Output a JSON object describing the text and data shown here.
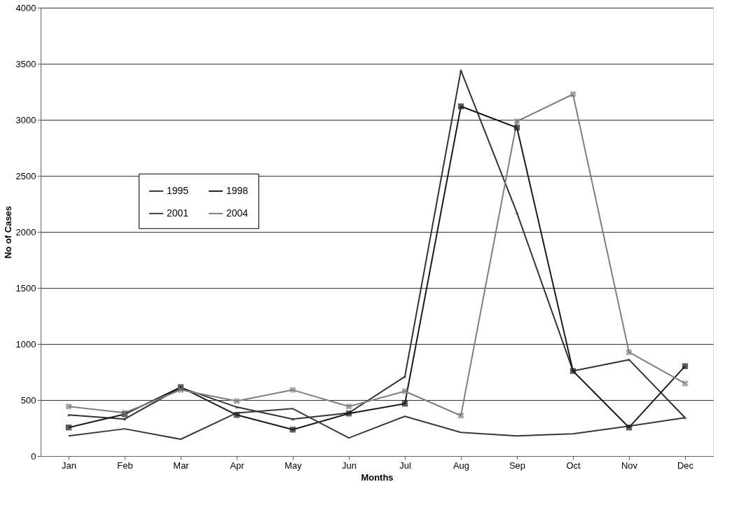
{
  "chart_data": {
    "type": "line",
    "xlabel": "Months",
    "ylabel": "No of Cases",
    "categories": [
      "Jan",
      "Feb",
      "Mar",
      "Apr",
      "May",
      "Jun",
      "Jul",
      "Aug",
      "Sep",
      "Oct",
      "Nov",
      "Dec"
    ],
    "series": [
      {
        "name": "1995",
        "color": "#333333",
        "marker": "triangle",
        "values": [
          367,
          330,
          610,
          437,
          330,
          385,
          709,
          3440,
          2170,
          760,
          860,
          342
        ]
      },
      {
        "name": "1998",
        "color": "#1a1a1a",
        "marker": "square",
        "values": [
          255,
          373,
          615,
          367,
          236,
          380,
          467,
          3120,
          2930,
          759,
          255,
          802
        ]
      },
      {
        "name": "2001",
        "color": "#3a3a3a",
        "marker": "none",
        "values": [
          180,
          243,
          150,
          385,
          423,
          162,
          355,
          211,
          180,
          199,
          267,
          342
        ]
      },
      {
        "name": "2004",
        "color": "#7f7f7f",
        "marker": "cross",
        "values": [
          442,
          386,
          590,
          491,
          590,
          442,
          578,
          361,
          2986,
          3228,
          927,
          647
        ]
      }
    ],
    "ylim": [
      0,
      4000
    ],
    "yticks": [
      0,
      500,
      1000,
      1500,
      2000,
      2500,
      3000,
      3500,
      4000
    ],
    "grid": "y",
    "legend": "left",
    "line_style": "solid"
  }
}
